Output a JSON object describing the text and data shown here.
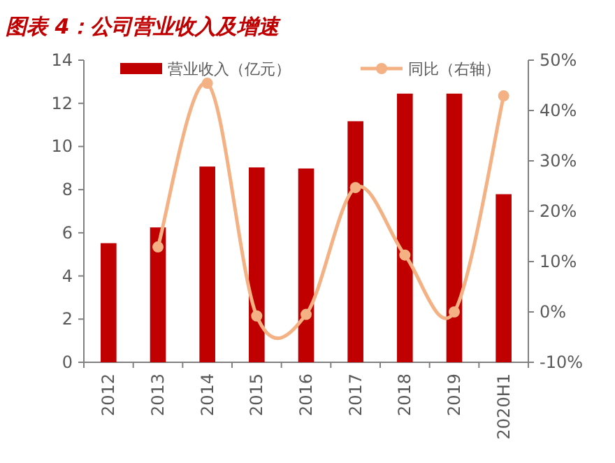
{
  "chart_data": {
    "type": "bar",
    "title": "图表 4：公司营业收入及增速",
    "categories": [
      "2012",
      "2013",
      "2014",
      "2015",
      "2016",
      "2017",
      "2018",
      "2019",
      "2020H1"
    ],
    "series": [
      {
        "name": "营业收入（亿元）",
        "color": "#c00000",
        "values": [
          5.52,
          6.25,
          9.07,
          9.03,
          8.98,
          11.17,
          12.45,
          12.45,
          7.79
        ]
      },
      {
        "name": "同比（右轴）",
        "type": "line",
        "axis": "y2",
        "color": "#f4b183",
        "marker": "circle",
        "values": [
          null,
          12.9,
          45.4,
          -0.8,
          -0.5,
          24.7,
          11.3,
          0.0,
          42.9
        ]
      }
    ],
    "ylim": [
      0,
      14
    ],
    "yticks": [
      0,
      2,
      4,
      6,
      8,
      10,
      12,
      14
    ],
    "y2lim": [
      -10,
      50
    ],
    "y2ticks": [
      {
        "value": -10,
        "label": "-10%"
      },
      {
        "value": 0,
        "label": "0%"
      },
      {
        "value": 10,
        "label": "10%"
      },
      {
        "value": 20,
        "label": "20%"
      },
      {
        "value": 30,
        "label": "30%"
      },
      {
        "value": 40,
        "label": "40%"
      },
      {
        "value": 50,
        "label": "50%"
      }
    ],
    "legend": "top",
    "grid": false
  }
}
